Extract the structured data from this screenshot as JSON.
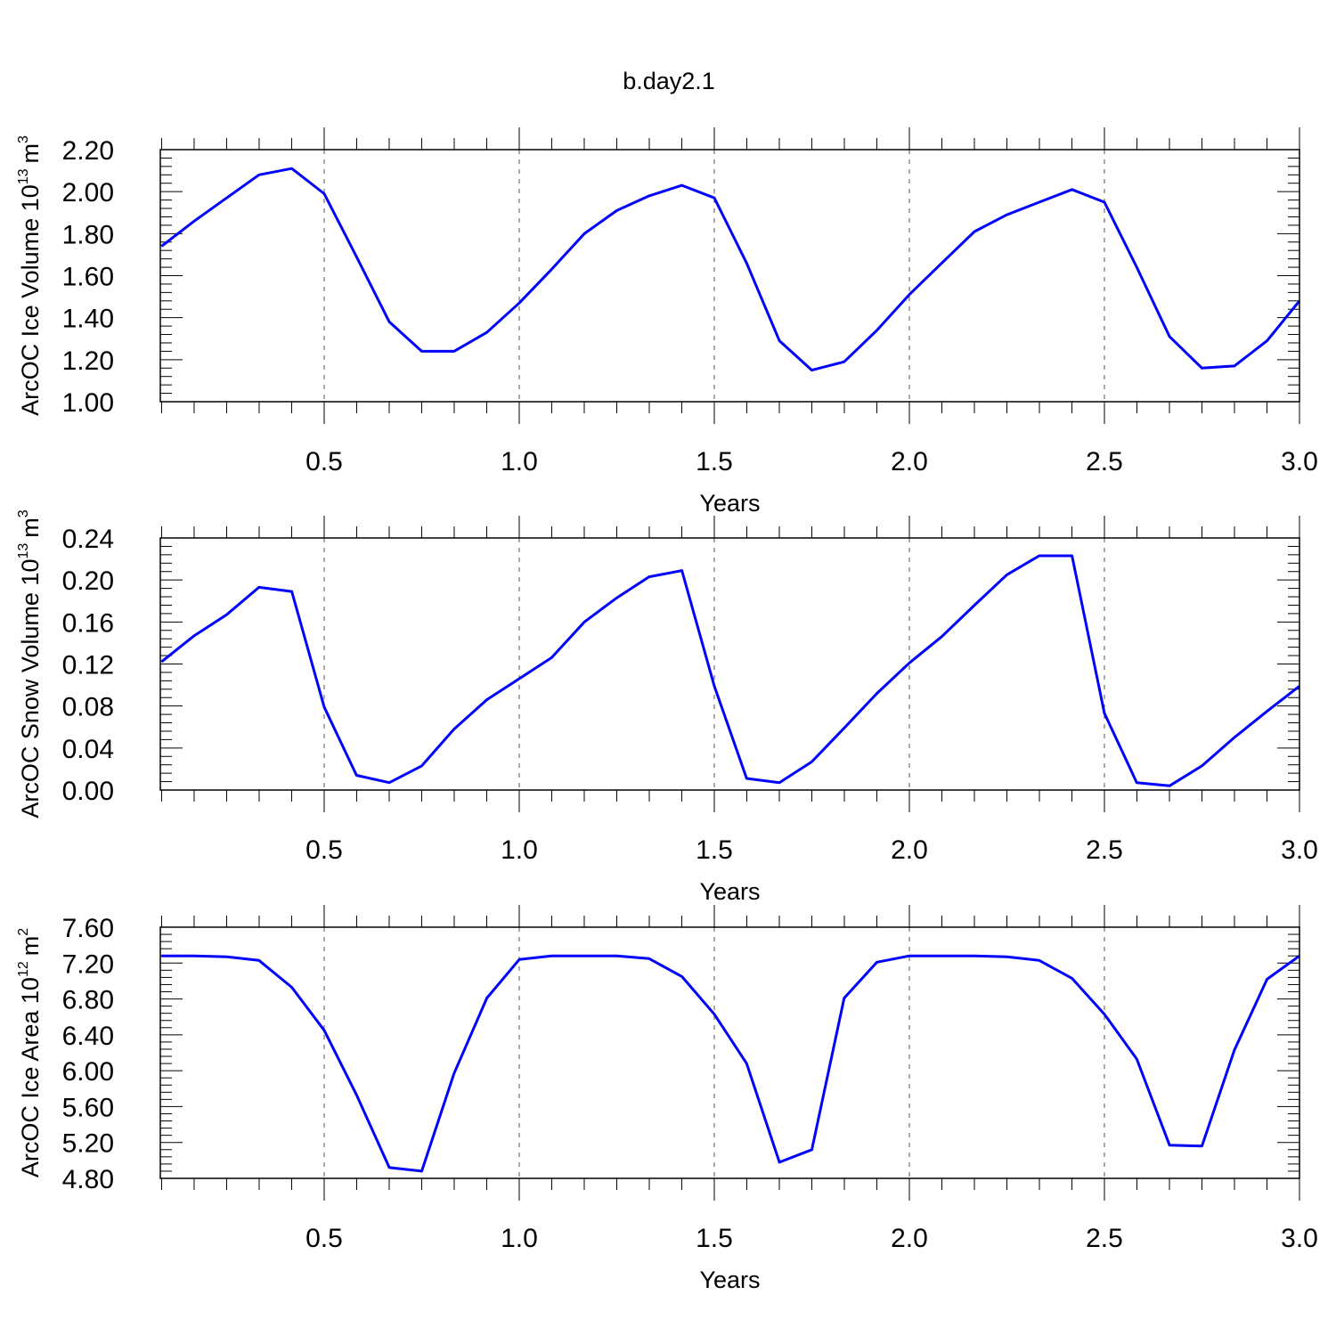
{
  "figure": {
    "title": "b.day2.1",
    "line_color": "#0000ff"
  },
  "chart_data": [
    {
      "type": "line",
      "title": "",
      "xlabel": "Years",
      "ylabel_main": "ArcOC Ice Volume 10",
      "ylabel_exp": "13",
      "ylabel_unit": "m",
      "ylabel_unit_exp": "3",
      "xlim": [
        0.08,
        3.0
      ],
      "ylim": [
        1.0,
        2.2
      ],
      "xticks": [
        0.5,
        1.0,
        1.5,
        2.0,
        2.5,
        3.0
      ],
      "xtick_labels": [
        "0.5",
        "1.0",
        "1.5",
        "2.0",
        "2.5",
        "3.0"
      ],
      "yticks": [
        1.0,
        1.2,
        1.4,
        1.6,
        1.8,
        2.0,
        2.2
      ],
      "ytick_labels": [
        "1.00",
        "1.20",
        "1.40",
        "1.60",
        "1.80",
        "2.00",
        "2.20"
      ],
      "grid": "vertical dashed at major x ticks",
      "series": [
        {
          "x": [
            0.083,
            0.167,
            0.25,
            0.333,
            0.417,
            0.5,
            0.583,
            0.667,
            0.75,
            0.833,
            0.917,
            1.0,
            1.083,
            1.167,
            1.25,
            1.333,
            1.417,
            1.5,
            1.583,
            1.667,
            1.75,
            1.833,
            1.917,
            2.0,
            2.083,
            2.167,
            2.25,
            2.333,
            2.417,
            2.5,
            2.583,
            2.667,
            2.75,
            2.833,
            2.917,
            3.0
          ],
          "values": [
            1.74,
            1.86,
            1.97,
            2.08,
            2.11,
            1.99,
            1.69,
            1.38,
            1.24,
            1.24,
            1.33,
            1.47,
            1.63,
            1.8,
            1.91,
            1.98,
            2.03,
            1.97,
            1.66,
            1.29,
            1.15,
            1.19,
            1.34,
            1.51,
            1.66,
            1.81,
            1.89,
            1.95,
            2.01,
            1.95,
            1.64,
            1.31,
            1.16,
            1.17,
            1.29,
            1.48
          ]
        }
      ]
    },
    {
      "type": "line",
      "title": "",
      "xlabel": "Years",
      "ylabel_main": "ArcOC Snow Volume 10",
      "ylabel_exp": "13",
      "ylabel_unit": "m",
      "ylabel_unit_exp": "3",
      "xlim": [
        0.08,
        3.0
      ],
      "ylim": [
        0.0,
        0.24
      ],
      "xticks": [
        0.5,
        1.0,
        1.5,
        2.0,
        2.5,
        3.0
      ],
      "xtick_labels": [
        "0.5",
        "1.0",
        "1.5",
        "2.0",
        "2.5",
        "3.0"
      ],
      "yticks": [
        0.0,
        0.04,
        0.08,
        0.12,
        0.16,
        0.2,
        0.24
      ],
      "ytick_labels": [
        "0.00",
        "0.04",
        "0.08",
        "0.12",
        "0.16",
        "0.20",
        "0.24"
      ],
      "grid": "vertical dashed at major x ticks",
      "series": [
        {
          "x": [
            0.083,
            0.167,
            0.25,
            0.333,
            0.417,
            0.5,
            0.583,
            0.667,
            0.75,
            0.833,
            0.917,
            1.0,
            1.083,
            1.167,
            1.25,
            1.333,
            1.417,
            1.5,
            1.583,
            1.667,
            1.75,
            1.833,
            1.917,
            2.0,
            2.083,
            2.167,
            2.25,
            2.333,
            2.417,
            2.5,
            2.583,
            2.667,
            2.75,
            2.833,
            2.917,
            3.0
          ],
          "values": [
            0.122,
            0.147,
            0.167,
            0.193,
            0.189,
            0.079,
            0.014,
            0.007,
            0.023,
            0.058,
            0.086,
            0.106,
            0.126,
            0.16,
            0.183,
            0.203,
            0.209,
            0.099,
            0.011,
            0.007,
            0.027,
            0.059,
            0.092,
            0.121,
            0.146,
            0.176,
            0.205,
            0.223,
            0.223,
            0.073,
            0.007,
            0.004,
            0.023,
            0.05,
            0.075,
            0.099
          ]
        }
      ]
    },
    {
      "type": "line",
      "title": "",
      "xlabel": "Years",
      "ylabel_main": "ArcOC Ice Area 10",
      "ylabel_exp": "12",
      "ylabel_unit": "m",
      "ylabel_unit_exp": "2",
      "xlim": [
        0.08,
        3.0
      ],
      "ylim": [
        4.8,
        7.6
      ],
      "xticks": [
        0.5,
        1.0,
        1.5,
        2.0,
        2.5,
        3.0
      ],
      "xtick_labels": [
        "0.5",
        "1.0",
        "1.5",
        "2.0",
        "2.5",
        "3.0"
      ],
      "yticks": [
        4.8,
        5.2,
        5.6,
        6.0,
        6.4,
        6.8,
        7.2,
        7.6
      ],
      "ytick_labels": [
        "4.80",
        "5.20",
        "5.60",
        "6.00",
        "6.40",
        "6.80",
        "7.20",
        "7.60"
      ],
      "grid": "vertical dashed at major x ticks",
      "series": [
        {
          "x": [
            0.083,
            0.167,
            0.25,
            0.333,
            0.417,
            0.5,
            0.583,
            0.667,
            0.75,
            0.833,
            0.917,
            1.0,
            1.083,
            1.167,
            1.25,
            1.333,
            1.417,
            1.5,
            1.583,
            1.667,
            1.75,
            1.833,
            1.917,
            2.0,
            2.083,
            2.167,
            2.25,
            2.333,
            2.417,
            2.5,
            2.583,
            2.667,
            2.75,
            2.833,
            2.917,
            3.0
          ],
          "values": [
            7.28,
            7.28,
            7.27,
            7.23,
            6.93,
            6.45,
            5.73,
            4.92,
            4.88,
            5.97,
            6.81,
            7.24,
            7.28,
            7.28,
            7.28,
            7.25,
            7.05,
            6.63,
            6.08,
            4.98,
            5.12,
            6.81,
            7.21,
            7.28,
            7.28,
            7.28,
            7.27,
            7.23,
            7.03,
            6.63,
            6.13,
            5.17,
            5.16,
            6.23,
            7.02,
            7.28
          ]
        }
      ]
    }
  ]
}
